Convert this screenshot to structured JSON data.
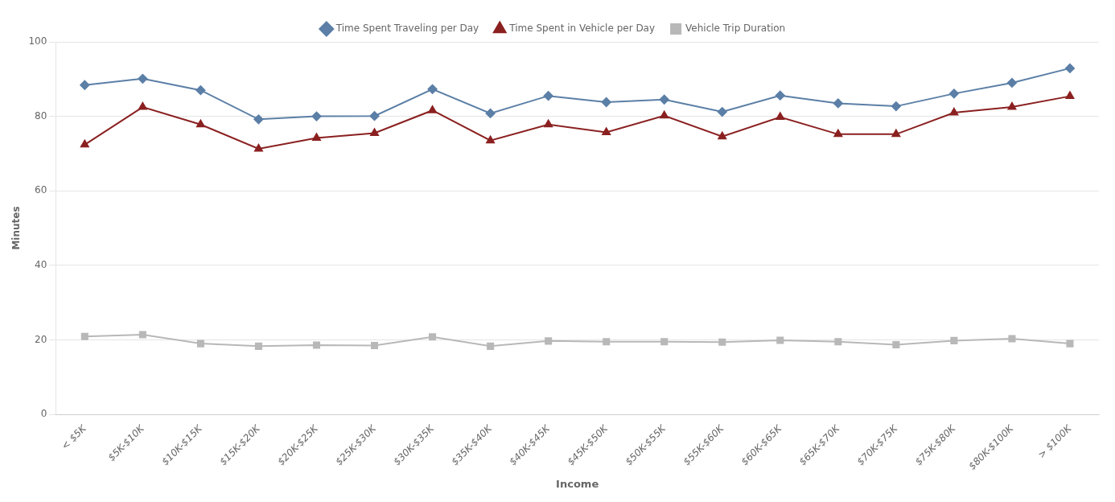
{
  "chart_data": {
    "type": "line",
    "xlabel": "Income",
    "ylabel": "Minutes",
    "categories": [
      "< $5K",
      "$5K-$10K",
      "$10K-$15K",
      "$15K-$20K",
      "$20K-$25K",
      "$25K-$30K",
      "$30K-$35K",
      "$35K-$40K",
      "$40K-$45K",
      "$45K-$50K",
      "$50K-$55K",
      "$55K-$60K",
      "$60K-$65K",
      "$65K-$70K",
      "$70K-$75K",
      "$75K-$80K",
      "$80K-$100K",
      "> $100K"
    ],
    "series": [
      {
        "name": "Time Spent Traveling per Day",
        "color": "#5b7fa6",
        "marker": "diamond",
        "values": [
          88.4,
          90.1,
          87.0,
          79.2,
          80.0,
          80.1,
          87.3,
          80.8,
          85.5,
          83.8,
          84.5,
          81.2,
          85.6,
          83.5,
          82.7,
          86.1,
          89.0,
          92.9
        ]
      },
      {
        "name": "Time Spent in Vehicle per Day",
        "color": "#8b2020",
        "marker": "triangle",
        "values": [
          72.4,
          82.5,
          77.8,
          71.3,
          74.2,
          75.5,
          81.6,
          73.5,
          77.8,
          75.7,
          80.2,
          74.6,
          79.8,
          75.2,
          75.2,
          81.0,
          82.5,
          85.4
        ]
      },
      {
        "name": "Vehicle Trip Duration",
        "color": "#b8b8b8",
        "marker": "square",
        "values": [
          20.9,
          21.4,
          19.0,
          18.3,
          18.6,
          18.5,
          20.8,
          18.3,
          19.7,
          19.5,
          19.5,
          19.4,
          19.9,
          19.5,
          18.7,
          19.8,
          20.3,
          19.0
        ]
      }
    ],
    "ylim": [
      0,
      100
    ],
    "yticks": [
      0,
      20,
      40,
      60,
      80,
      100
    ],
    "grid": "y",
    "legend": "top"
  }
}
